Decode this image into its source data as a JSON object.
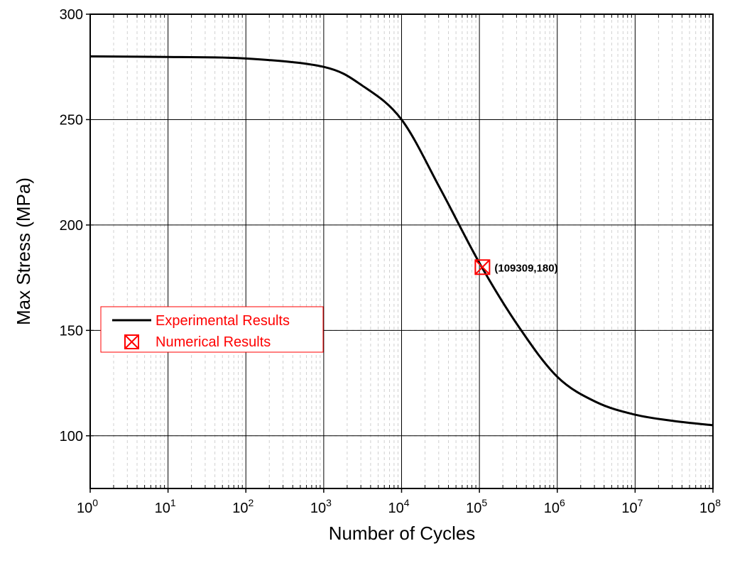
{
  "chart_data": {
    "type": "line",
    "xlabel": "Number of Cycles",
    "ylabel": "Max Stress (MPa)",
    "x_scale": "log",
    "xlim": [
      1,
      100000000
    ],
    "ylim": [
      75,
      300
    ],
    "grid": true,
    "x_ticks": [
      {
        "value": 1,
        "base": "10",
        "exp": "0"
      },
      {
        "value": 10,
        "base": "10",
        "exp": "1"
      },
      {
        "value": 100,
        "base": "10",
        "exp": "2"
      },
      {
        "value": 1000,
        "base": "10",
        "exp": "3"
      },
      {
        "value": 10000,
        "base": "10",
        "exp": "4"
      },
      {
        "value": 100000,
        "base": "10",
        "exp": "5"
      },
      {
        "value": 1000000,
        "base": "10",
        "exp": "6"
      },
      {
        "value": 10000000,
        "base": "10",
        "exp": "7"
      },
      {
        "value": 100000000,
        "base": "10",
        "exp": "8"
      }
    ],
    "y_ticks": [
      100,
      150,
      200,
      250,
      300
    ],
    "legend": {
      "position": "left",
      "text_color": "#ff0000",
      "border_color": "#ff0000"
    },
    "series": [
      {
        "name": "Experimental Results",
        "kind": "line",
        "color": "#000000",
        "x": [
          1,
          10,
          100,
          1000,
          3162,
          10000,
          31623,
          100000,
          316228,
          1000000,
          3162278,
          10000000,
          31622777,
          100000000
        ],
        "y": [
          280,
          279.7,
          279,
          275,
          266,
          250,
          217,
          182,
          152,
          128,
          116,
          110,
          107,
          105
        ]
      },
      {
        "name": "Numerical Results",
        "kind": "marker",
        "marker": "square-x",
        "color": "#ff0000",
        "x": [
          109309
        ],
        "y": [
          180
        ]
      }
    ],
    "annotations": [
      {
        "text": "(109309,180)",
        "x": 109309,
        "y": 180
      }
    ]
  }
}
